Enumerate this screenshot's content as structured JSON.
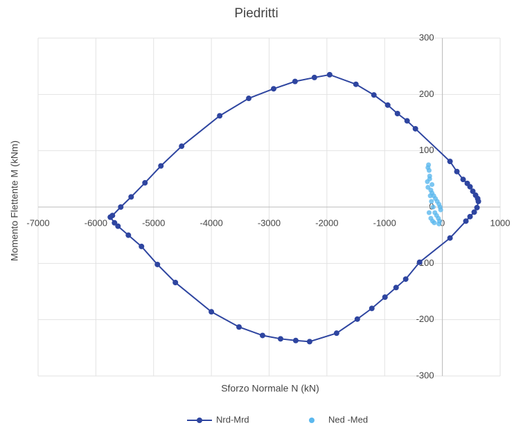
{
  "chart_data": {
    "type": "line",
    "title": "Piedritti",
    "x_label": "Sforzo Normale N (kN)",
    "y_label": "Momento Flettente M (kNm)",
    "xlim": [
      -7000,
      1000
    ],
    "xticks": [
      -7000,
      -6000,
      -5000,
      -4000,
      -3000,
      -2000,
      -1000,
      0,
      1000
    ],
    "ylim": [
      -300,
      300
    ],
    "yticks": [
      -300,
      -200,
      -100,
      0,
      100,
      200,
      300
    ],
    "grid": true,
    "legend": "bottom",
    "series": [
      {
        "name": "Nrd-Mrd",
        "color": "#2e45a0",
        "show_line": true,
        "x": [
          -5749,
          -5713,
          -5569,
          -5389,
          -5150,
          -4874,
          -4515,
          -3856,
          -3353,
          -2922,
          -2551,
          -2216,
          -1952,
          -1497,
          -1186,
          -946,
          -778,
          -611,
          -467,
          132,
          251,
          359,
          431,
          479,
          527,
          575,
          611,
          623,
          599,
          551,
          479,
          407,
          132,
          -395,
          -635,
          -802,
          -994,
          -1222,
          -1473,
          -1832,
          -2299,
          -2539,
          -2802,
          -3114,
          -3521,
          -4000,
          -4623,
          -4934,
          -5210,
          -5437,
          -5617,
          -5677,
          -5749
        ],
        "values": [
          -18,
          -15,
          0,
          18,
          43,
          73,
          108,
          162,
          193,
          210,
          223,
          230,
          235,
          218,
          199,
          181,
          166,
          153,
          139,
          81,
          63,
          49,
          42,
          36,
          28,
          21,
          15,
          10,
          -1,
          -9,
          -17,
          -25,
          -55,
          -98,
          -128,
          -143,
          -160,
          -180,
          -199,
          -224,
          -239,
          -237,
          -234,
          -228,
          -213,
          -186,
          -134,
          -102,
          -70,
          -50,
          -34,
          -28,
          -18
        ]
      },
      {
        "name": "Ned -Med",
        "color": "#5bb8ee",
        "show_line": false,
        "x": [
          -250,
          -240,
          -230,
          -220,
          -260,
          -250,
          -200,
          -180,
          -150,
          -120,
          -90,
          -60,
          -40,
          -30,
          -210,
          -190,
          -160,
          -130,
          -100,
          -70,
          -230,
          -200,
          -170,
          -140,
          -60,
          -50,
          -220,
          -180
        ],
        "values": [
          70,
          75,
          65,
          55,
          45,
          35,
          30,
          25,
          20,
          15,
          10,
          5,
          0,
          -5,
          20,
          10,
          0,
          -10,
          -15,
          -20,
          -10,
          -20,
          -25,
          -28,
          -30,
          -25,
          50,
          40
        ]
      }
    ]
  }
}
